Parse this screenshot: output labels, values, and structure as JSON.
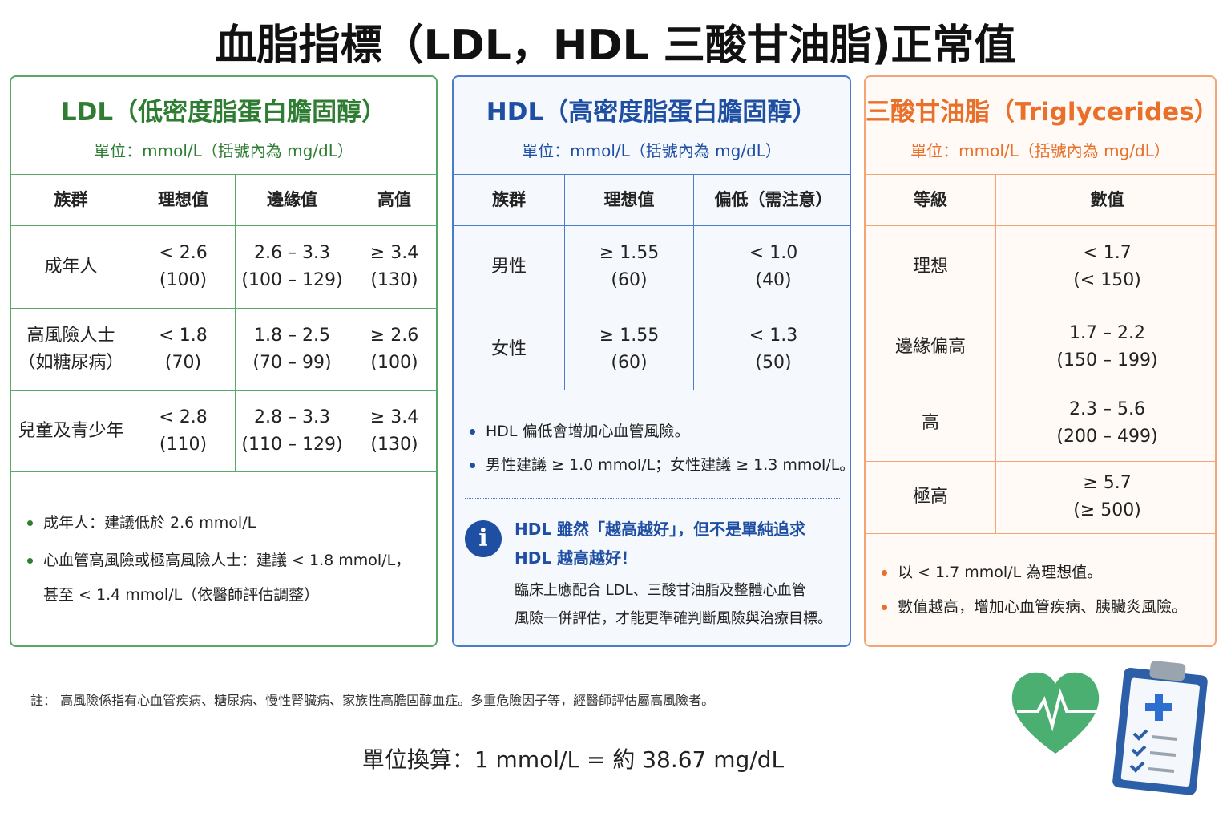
{
  "title": "血脂指標（LDL，HDL 三酸甘油脂)正常值",
  "panels": [
    {
      "title": "LDL（低密度脂蛋白膽固醇）",
      "unit": "單位：mmol/L（括號內為 mg/dL）",
      "table": {
        "header": [
          "族群",
          "理想值",
          "邊緣值",
          "高值"
        ],
        "rows": [
          [
            [
              "成年人"
            ],
            [
              "< 2.6",
              "(100)"
            ],
            [
              "2.6 – 3.3",
              "(100 – 129)"
            ],
            [
              "≥ 3.4",
              "(130)"
            ]
          ],
          [
            [
              "高風險人士",
              "（如糖尿病）"
            ],
            [
              "< 1.8",
              "(70)"
            ],
            [
              "1.8 – 2.5",
              "(70 – 99)"
            ],
            [
              "≥ 2.6",
              "(100)"
            ]
          ],
          [
            [
              "兒童及青少年"
            ],
            [
              "< 2.8",
              "(110)"
            ],
            [
              "2.8 – 3.3",
              "(110 – 129)"
            ],
            [
              "≥ 3.4",
              "(130)"
            ]
          ]
        ]
      },
      "notes": [
        [
          "成年人：建議低於 2.6 mmol/L"
        ],
        [
          "心血管高風險或極高風險人士：建議 < 1.8 mmol/L，",
          "甚至 < 1.4 mmol/L（依醫師評估調整）"
        ]
      ]
    },
    {
      "title": "HDL（高密度脂蛋白膽固醇）",
      "unit": "單位：mmol/L（括號內為 mg/dL）",
      "table": {
        "header": [
          "族群",
          "理想值",
          "偏低（需注意）"
        ],
        "rows": [
          [
            [
              "男性"
            ],
            [
              "≥ 1.55",
              "(60)"
            ],
            [
              "< 1.0",
              "(40)"
            ]
          ],
          [
            [
              "女性"
            ],
            [
              "≥ 1.55",
              "(60)"
            ],
            [
              "< 1.3",
              "(50)"
            ]
          ]
        ]
      },
      "notes": [
        [
          "HDL 偏低會增加心血管風險。"
        ],
        [
          "男性建議 ≥ 1.0 mmol/L；女性建議 ≥ 1.3 mmol/L。"
        ]
      ],
      "info": {
        "title": [
          "HDL 雖然「越高越好」，但不是單純追求",
          "HDL 越高越好！"
        ],
        "body": [
          "臨床上應配合 LDL、三酸甘油脂及整體心血管",
          "風險一併評估，才能更準確判斷風險與治療目標。"
        ]
      }
    },
    {
      "title": "三酸甘油脂（Triglycerides）",
      "unit": "單位：mmol/L（括號內為 mg/dL）",
      "table": {
        "header": [
          "等級",
          "數值"
        ],
        "rows": [
          [
            [
              "理想"
            ],
            [
              "< 1.7",
              "(< 150)"
            ]
          ],
          [
            [
              "邊緣偏高"
            ],
            [
              "1.7 – 2.2",
              "(150 – 199)"
            ]
          ],
          [
            [
              "高"
            ],
            [
              "2.3 – 5.6",
              "(200 – 499)"
            ]
          ],
          [
            [
              "極高"
            ],
            [
              "≥ 5.7",
              "(≥ 500)"
            ]
          ]
        ]
      },
      "notes": [
        [
          "以 < 1.7 mmol/L 為理想值。"
        ],
        [
          "數值越高，增加心血管疾病、胰臟炎風險。"
        ]
      ]
    }
  ],
  "footnote": "註： 高風險係指有心血管疾病、糖尿病、慢性腎臟病、家族性高膽固醇血症。多重危險因子等，經醫師評估屬高風險者。",
  "conversion": "單位換算：1 mmol/L = 約 38.67 mg/dL"
}
